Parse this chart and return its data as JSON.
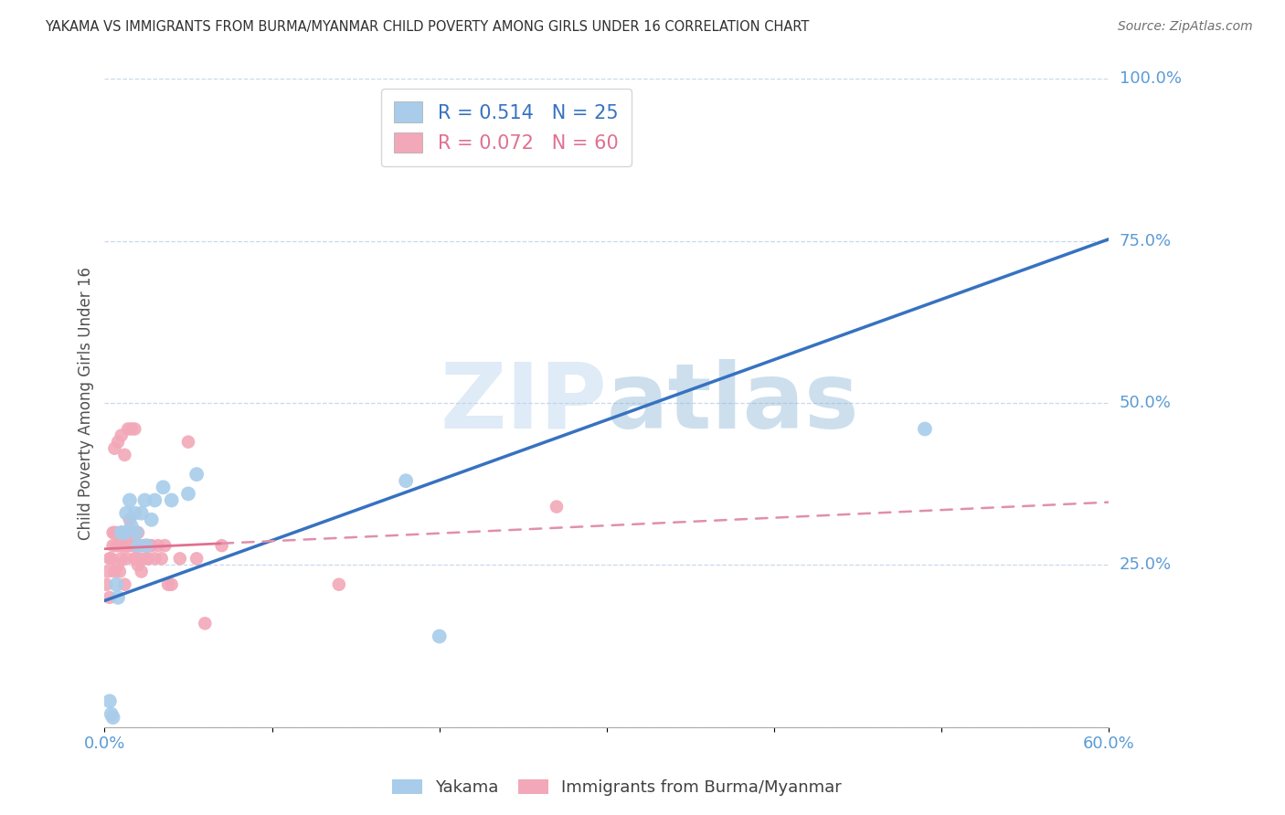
{
  "title": "YAKAMA VS IMMIGRANTS FROM BURMA/MYANMAR CHILD POVERTY AMONG GIRLS UNDER 16 CORRELATION CHART",
  "source": "Source: ZipAtlas.com",
  "ylabel": "Child Poverty Among Girls Under 16",
  "xlim": [
    0.0,
    0.6
  ],
  "ylim": [
    0.0,
    1.0
  ],
  "xticks": [
    0.0,
    0.1,
    0.2,
    0.3,
    0.4,
    0.5,
    0.6
  ],
  "xticklabels": [
    "0.0%",
    "",
    "",
    "",
    "",
    "",
    "60.0%"
  ],
  "yticks": [
    0.0,
    0.25,
    0.5,
    0.75,
    1.0
  ],
  "yticklabels": [
    "",
    "25.0%",
    "50.0%",
    "75.0%",
    "100.0%"
  ],
  "watermark_zip": "ZIP",
  "watermark_atlas": "atlas",
  "blue_R": 0.514,
  "blue_N": 25,
  "pink_R": 0.072,
  "pink_N": 60,
  "blue_label": "Yakama",
  "pink_label": "Immigrants from Burma/Myanmar",
  "blue_color": "#A8CCEA",
  "pink_color": "#F2A8B8",
  "blue_line_color": "#3672C0",
  "pink_line_color": "#E07090",
  "pink_dash_color": "#E090A8",
  "axis_color": "#5B9BD5",
  "title_color": "#404040",
  "background_color": "#FFFFFF",
  "blue_intercept": 0.195,
  "blue_slope": 0.93,
  "pink_intercept": 0.275,
  "pink_slope": 0.12,
  "blue_x": [
    0.003,
    0.004,
    0.005,
    0.007,
    0.008,
    0.01,
    0.012,
    0.013,
    0.015,
    0.016,
    0.018,
    0.019,
    0.02,
    0.022,
    0.024,
    0.025,
    0.028,
    0.03,
    0.035,
    0.04,
    0.05,
    0.055,
    0.18,
    0.2,
    0.49
  ],
  "blue_y": [
    0.04,
    0.02,
    0.015,
    0.22,
    0.2,
    0.3,
    0.3,
    0.33,
    0.35,
    0.31,
    0.33,
    0.3,
    0.28,
    0.33,
    0.35,
    0.28,
    0.32,
    0.35,
    0.37,
    0.35,
    0.36,
    0.39,
    0.38,
    0.14,
    0.46
  ],
  "pink_x": [
    0.001,
    0.002,
    0.003,
    0.003,
    0.004,
    0.005,
    0.005,
    0.006,
    0.006,
    0.007,
    0.007,
    0.008,
    0.008,
    0.009,
    0.01,
    0.01,
    0.011,
    0.012,
    0.012,
    0.013,
    0.013,
    0.014,
    0.015,
    0.015,
    0.016,
    0.017,
    0.018,
    0.018,
    0.019,
    0.02,
    0.02,
    0.021,
    0.022,
    0.023,
    0.024,
    0.025,
    0.026,
    0.027,
    0.028,
    0.03,
    0.032,
    0.034,
    0.036,
    0.038,
    0.04,
    0.045,
    0.05,
    0.055,
    0.06,
    0.07,
    0.012,
    0.014,
    0.016,
    0.018,
    0.02,
    0.01,
    0.008,
    0.006,
    0.14,
    0.27
  ],
  "pink_y": [
    0.22,
    0.24,
    0.2,
    0.26,
    0.26,
    0.28,
    0.3,
    0.3,
    0.24,
    0.28,
    0.3,
    0.25,
    0.28,
    0.24,
    0.26,
    0.3,
    0.28,
    0.22,
    0.28,
    0.3,
    0.26,
    0.28,
    0.28,
    0.32,
    0.3,
    0.28,
    0.26,
    0.3,
    0.26,
    0.28,
    0.25,
    0.26,
    0.24,
    0.28,
    0.28,
    0.26,
    0.26,
    0.28,
    0.28,
    0.26,
    0.28,
    0.26,
    0.28,
    0.22,
    0.22,
    0.26,
    0.44,
    0.26,
    0.16,
    0.28,
    0.42,
    0.46,
    0.46,
    0.46,
    0.3,
    0.45,
    0.44,
    0.43,
    0.22,
    0.34
  ]
}
